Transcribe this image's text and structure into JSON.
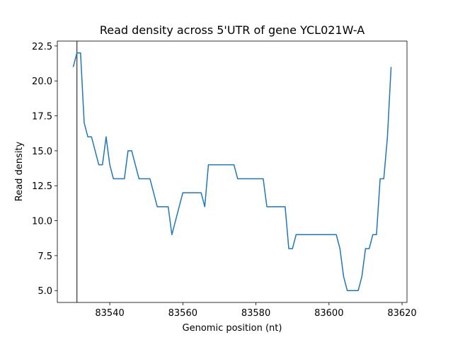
{
  "chart_data": {
    "type": "line",
    "title": "Read density across 5'UTR of gene YCL021W-A",
    "x_label": "Genomic position (nt)",
    "y_label": "Read density",
    "x": [
      83530,
      83531,
      83532,
      83533,
      83534,
      83535,
      83536,
      83537,
      83538,
      83539,
      83540,
      83541,
      83542,
      83543,
      83544,
      83545,
      83546,
      83547,
      83548,
      83549,
      83550,
      83551,
      83552,
      83553,
      83554,
      83555,
      83556,
      83557,
      83558,
      83559,
      83560,
      83561,
      83562,
      83563,
      83564,
      83565,
      83566,
      83567,
      83568,
      83569,
      83570,
      83571,
      83572,
      83573,
      83574,
      83575,
      83576,
      83577,
      83578,
      83579,
      83580,
      83581,
      83582,
      83583,
      83584,
      83585,
      83586,
      83587,
      83588,
      83589,
      83590,
      83591,
      83592,
      83593,
      83594,
      83595,
      83596,
      83597,
      83598,
      83599,
      83600,
      83601,
      83602,
      83603,
      83604,
      83605,
      83606,
      83607,
      83608,
      83609,
      83610,
      83611,
      83612,
      83613,
      83614,
      83615,
      83616,
      83617
    ],
    "series": [
      {
        "color": "#1f77b4",
        "values": [
          21,
          22,
          22,
          17,
          16,
          16,
          15,
          14,
          14,
          16,
          14,
          13,
          13,
          13,
          13,
          15,
          15,
          14,
          13,
          13,
          13,
          13,
          12,
          11,
          11,
          11,
          11,
          9,
          10,
          11,
          12,
          12,
          12,
          12,
          12,
          12,
          11,
          14,
          14,
          14,
          14,
          14,
          14,
          14,
          14,
          13,
          13,
          13,
          13,
          13,
          13,
          13,
          13,
          11,
          11,
          11,
          11,
          11,
          11,
          8,
          8,
          9,
          9,
          9,
          9,
          9,
          9,
          9,
          9,
          9,
          9,
          9,
          9,
          8,
          6,
          5,
          5,
          5,
          5,
          6,
          8,
          8,
          9,
          9,
          13,
          13,
          16,
          21
        ]
      }
    ],
    "vlines": [
      83531
    ],
    "vline_color": "#555555",
    "xlim": [
      83525.65,
      83621.35
    ],
    "ylim": [
      4.15,
      22.85
    ],
    "xticks": [
      83540,
      83560,
      83580,
      83600,
      83620
    ],
    "yticks": [
      {
        "value": 5,
        "label": "5.0"
      },
      7.5,
      {
        "value": 10,
        "label": "10.0"
      },
      12.5,
      {
        "value": 15,
        "label": "15.0"
      },
      17.5,
      {
        "value": 20,
        "label": "20.0"
      },
      22.5
    ]
  }
}
